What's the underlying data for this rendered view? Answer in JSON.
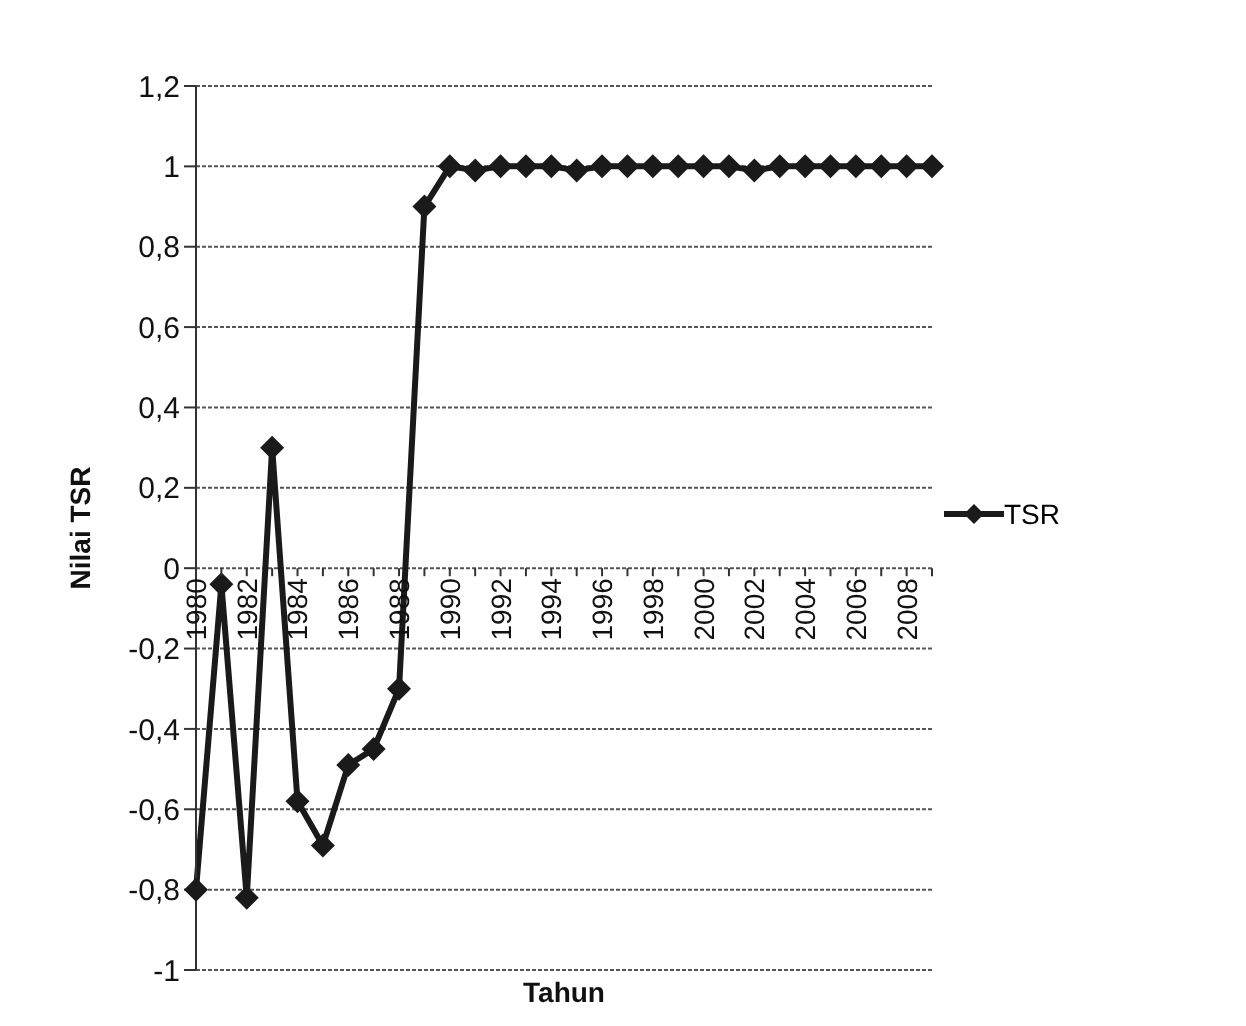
{
  "chart_data": {
    "type": "line",
    "xlabel": "Tahun",
    "ylabel": "Nilai TSR",
    "categories": [
      "1980",
      null,
      "1982",
      null,
      "1984",
      null,
      "1986",
      null,
      "1988",
      null,
      "1990",
      null,
      "1992",
      null,
      "1994",
      null,
      "1996",
      null,
      "1998",
      null,
      "2000",
      null,
      "2002",
      null,
      "2004",
      null,
      "2006",
      null,
      "2008",
      null
    ],
    "series": [
      {
        "name": "TSR",
        "color": "#1a1a1a",
        "values": [
          -0.8,
          -0.04,
          -0.82,
          0.3,
          -0.58,
          -0.69,
          -0.49,
          -0.45,
          -0.3,
          0.9,
          1,
          0.99,
          1,
          1,
          1,
          0.99,
          1,
          1,
          1,
          1,
          1,
          1,
          0.99,
          1,
          1,
          1,
          1,
          1,
          1,
          1
        ]
      }
    ],
    "ylim": [
      -1,
      1.2
    ],
    "yticks": [
      {
        "value": -1,
        "label": "-1"
      },
      {
        "value": -0.8,
        "label": "-0,8"
      },
      {
        "value": -0.6,
        "label": "-0,6"
      },
      {
        "value": -0.4,
        "label": "-0,4"
      },
      {
        "value": -0.2,
        "label": "-0,2"
      },
      0,
      {
        "value": 0.2,
        "label": "0,2"
      },
      {
        "value": 0.4,
        "label": "0,4"
      },
      {
        "value": 0.6,
        "label": "0,6"
      },
      {
        "value": 0.8,
        "label": "0,8"
      },
      1,
      {
        "value": 1.2,
        "label": "1,2"
      }
    ],
    "grid": "y",
    "legend": "right",
    "marker": "diamond",
    "line_style": "solid"
  }
}
